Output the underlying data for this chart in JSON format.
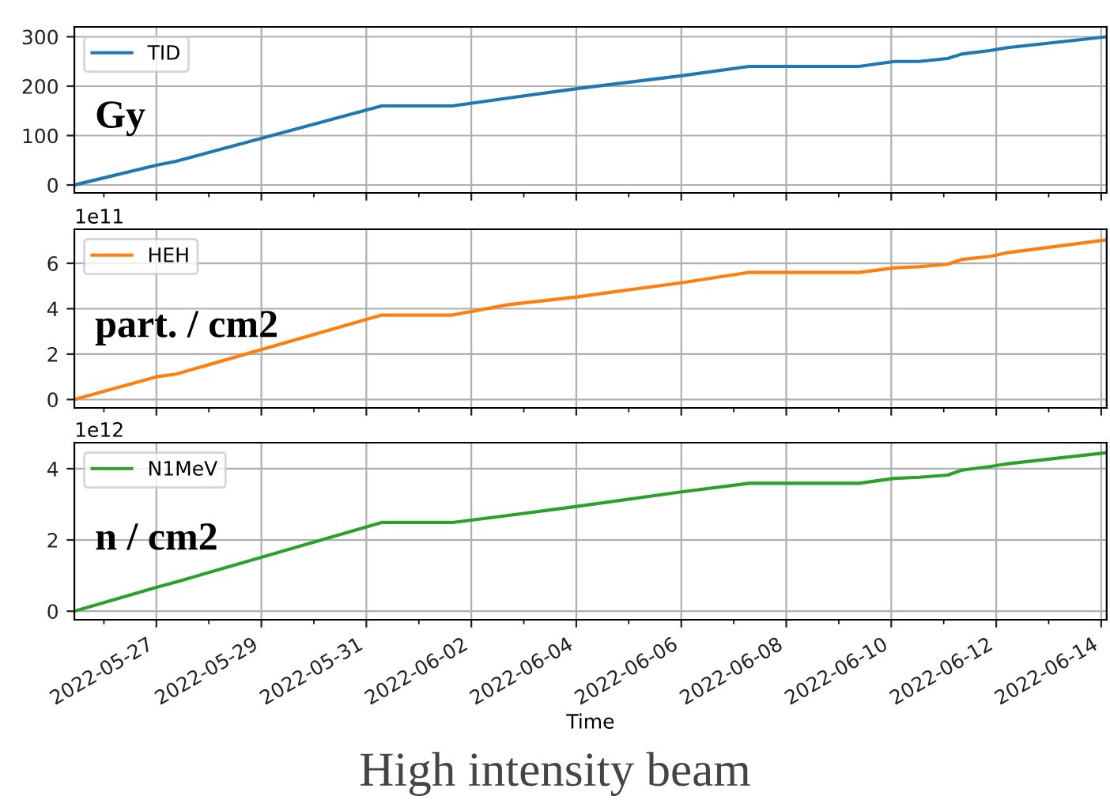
{
  "chart_data": [
    {
      "type": "line",
      "x": [
        "2022-05-25T10:30",
        "2022-05-27T00:00",
        "2022-05-27T09:00",
        "2022-05-31T07:00",
        "2022-06-01T15:15",
        "2022-06-02T17:00",
        "2022-06-04T00:15",
        "2022-06-06T00:00",
        "2022-06-07T07:00",
        "2022-06-09T09:15",
        "2022-06-10T01:30",
        "2022-06-10T12:45",
        "2022-06-11T01:45",
        "2022-06-11T08:15",
        "2022-06-11T21:00",
        "2022-06-12T05:15",
        "2022-06-14T02:30"
      ],
      "series": [
        {
          "name": "TID",
          "color": "#1f77b4",
          "values": [
            0,
            40,
            48,
            160,
            160,
            176,
            195,
            221,
            240,
            240,
            250,
            250,
            256,
            265,
            272,
            278,
            300
          ]
        }
      ],
      "xlim": [
        "2022-05-25T10:30",
        "2022-06-14T02:30"
      ],
      "ylim": [
        -16,
        320
      ],
      "yticks": [
        0,
        100,
        200,
        300
      ],
      "annotations": [
        "Gy"
      ],
      "grid": true,
      "legend": "top left",
      "tick_labels": "y"
    },
    {
      "type": "line",
      "x": [
        "2022-05-25T10:30",
        "2022-05-27T00:00",
        "2022-05-27T09:00",
        "2022-05-31T07:00",
        "2022-06-01T15:15",
        "2022-06-02T17:00",
        "2022-06-04T00:15",
        "2022-06-06T00:00",
        "2022-06-07T07:00",
        "2022-06-09T09:15",
        "2022-06-10T01:30",
        "2022-06-10T12:45",
        "2022-06-11T01:45",
        "2022-06-11T08:15",
        "2022-06-11T21:00",
        "2022-06-12T05:15",
        "2022-06-14T02:30"
      ],
      "series": [
        {
          "name": "HEH",
          "color": "#ff7f0e",
          "values": [
            0,
            1.0,
            1.12,
            3.72,
            3.72,
            4.18,
            4.52,
            5.14,
            5.6,
            5.6,
            5.8,
            5.85,
            5.96,
            6.17,
            6.3,
            6.47,
            7.03
          ]
        }
      ],
      "xlim": [
        "2022-05-25T10:30",
        "2022-06-14T02:30"
      ],
      "ylim": [
        -0.37,
        7.5
      ],
      "yticks": [
        0,
        2,
        4,
        6
      ],
      "annotations": [
        "part. / cm2",
        "1e11"
      ],
      "grid": true,
      "legend": "top left",
      "tick_labels": "y"
    },
    {
      "type": "line",
      "x": [
        "2022-05-25T10:30",
        "2022-05-27T00:00",
        "2022-05-27T09:00",
        "2022-05-31T07:00",
        "2022-06-01T15:15",
        "2022-06-02T17:00",
        "2022-06-04T00:15",
        "2022-06-06T00:00",
        "2022-06-07T07:00",
        "2022-06-09T09:15",
        "2022-06-10T01:30",
        "2022-06-10T12:45",
        "2022-06-11T01:45",
        "2022-06-11T08:15",
        "2022-06-11T21:00",
        "2022-06-12T05:15",
        "2022-06-14T02:30"
      ],
      "series": [
        {
          "name": "N1MeV",
          "color": "#2ca02c",
          "values": [
            0,
            0.67,
            0.82,
            2.49,
            2.49,
            2.69,
            2.94,
            3.35,
            3.59,
            3.59,
            3.73,
            3.76,
            3.82,
            3.96,
            4.06,
            4.14,
            4.45
          ]
        }
      ],
      "xlim": [
        "2022-05-25T10:30",
        "2022-06-14T02:30"
      ],
      "ylim": [
        -0.24,
        4.73
      ],
      "yticks": [
        0,
        2,
        4
      ],
      "xticks": [
        "2022-05-27",
        "2022-05-29",
        "2022-05-31",
        "2022-06-02",
        "2022-06-04",
        "2022-06-06",
        "2022-06-08",
        "2022-06-10",
        "2022-06-12",
        "2022-06-14"
      ],
      "xlabel": "Time",
      "annotations": [
        "n / cm2",
        "1e12",
        "High intensity beam"
      ],
      "grid": true,
      "legend": "top left"
    }
  ]
}
